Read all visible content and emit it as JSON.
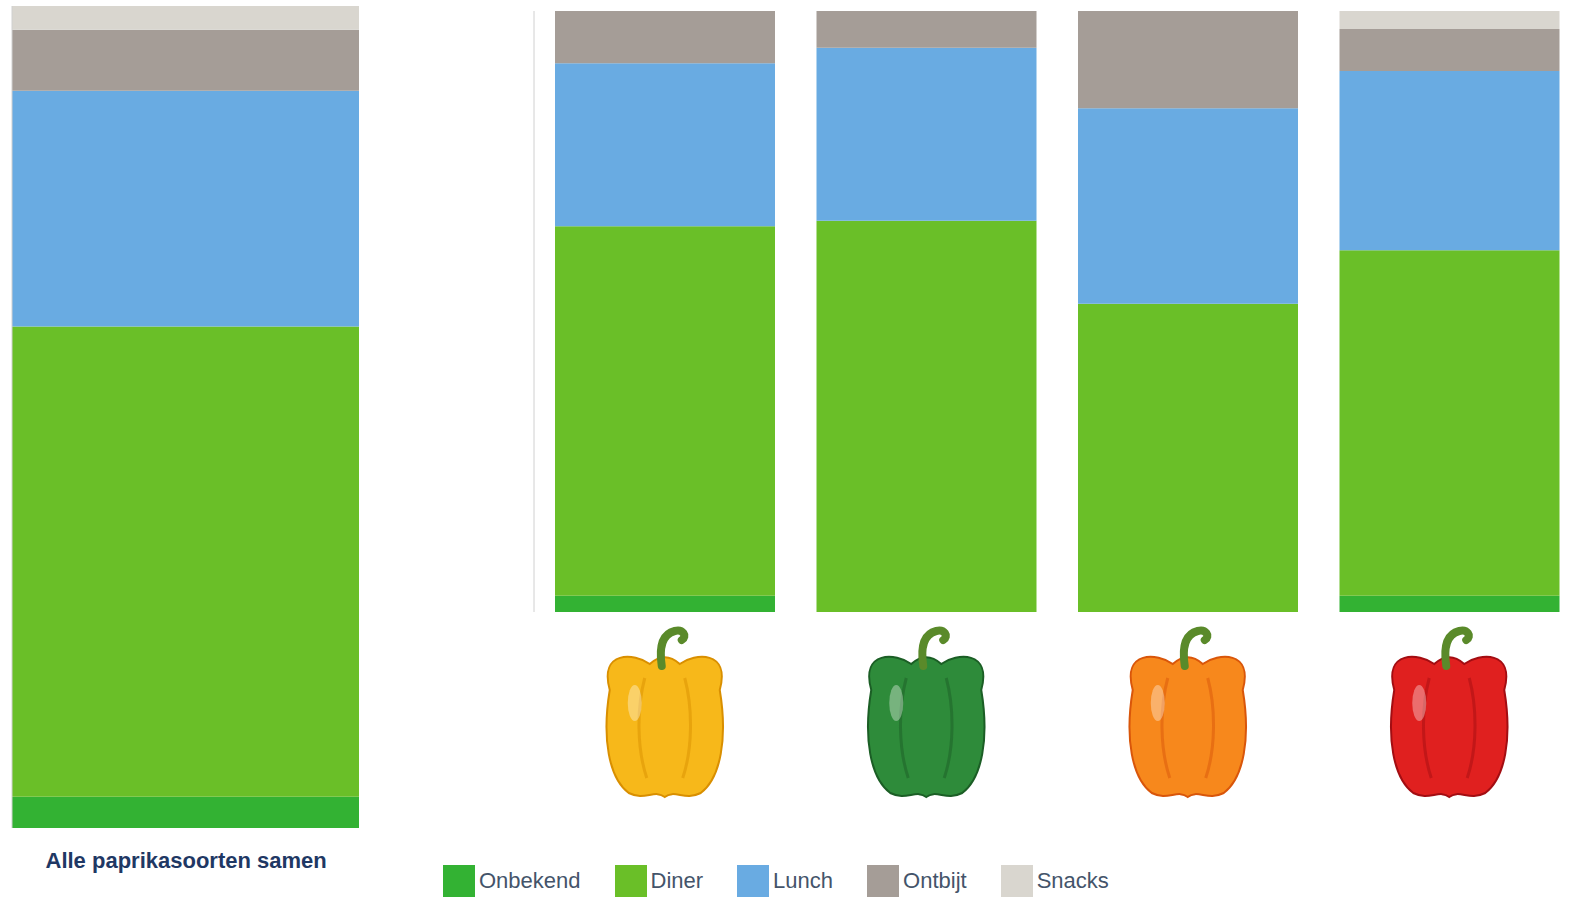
{
  "chart_data": {
    "type": "bar",
    "stacked": true,
    "legend": "bottom",
    "tick_labels": false,
    "ylim": [
      0,
      100
    ],
    "categories": [
      "Alle paprikasoorten samen",
      null,
      null,
      null,
      null
    ],
    "series": [
      {
        "name": "Onbekend",
        "color": "#33b233",
        "values": [
          3.8,
          2.7,
          0,
          0,
          2.7
        ]
      },
      {
        "name": "Diner",
        "color": "#6abf28",
        "values": [
          57.2,
          61.5,
          65.1,
          51.3,
          57.5
        ]
      },
      {
        "name": "Lunch",
        "color": "#69abe2",
        "values": [
          28.7,
          27.1,
          28.8,
          32.5,
          29.8
        ]
      },
      {
        "name": "Ontbijt",
        "color": "#a59d97",
        "values": [
          7.4,
          8.7,
          6.1,
          16.2,
          7.0
        ]
      },
      {
        "name": "Snacks",
        "color": "#d9d6cf",
        "values": [
          2.9,
          0,
          0,
          0,
          3.0
        ]
      }
    ]
  }
}
